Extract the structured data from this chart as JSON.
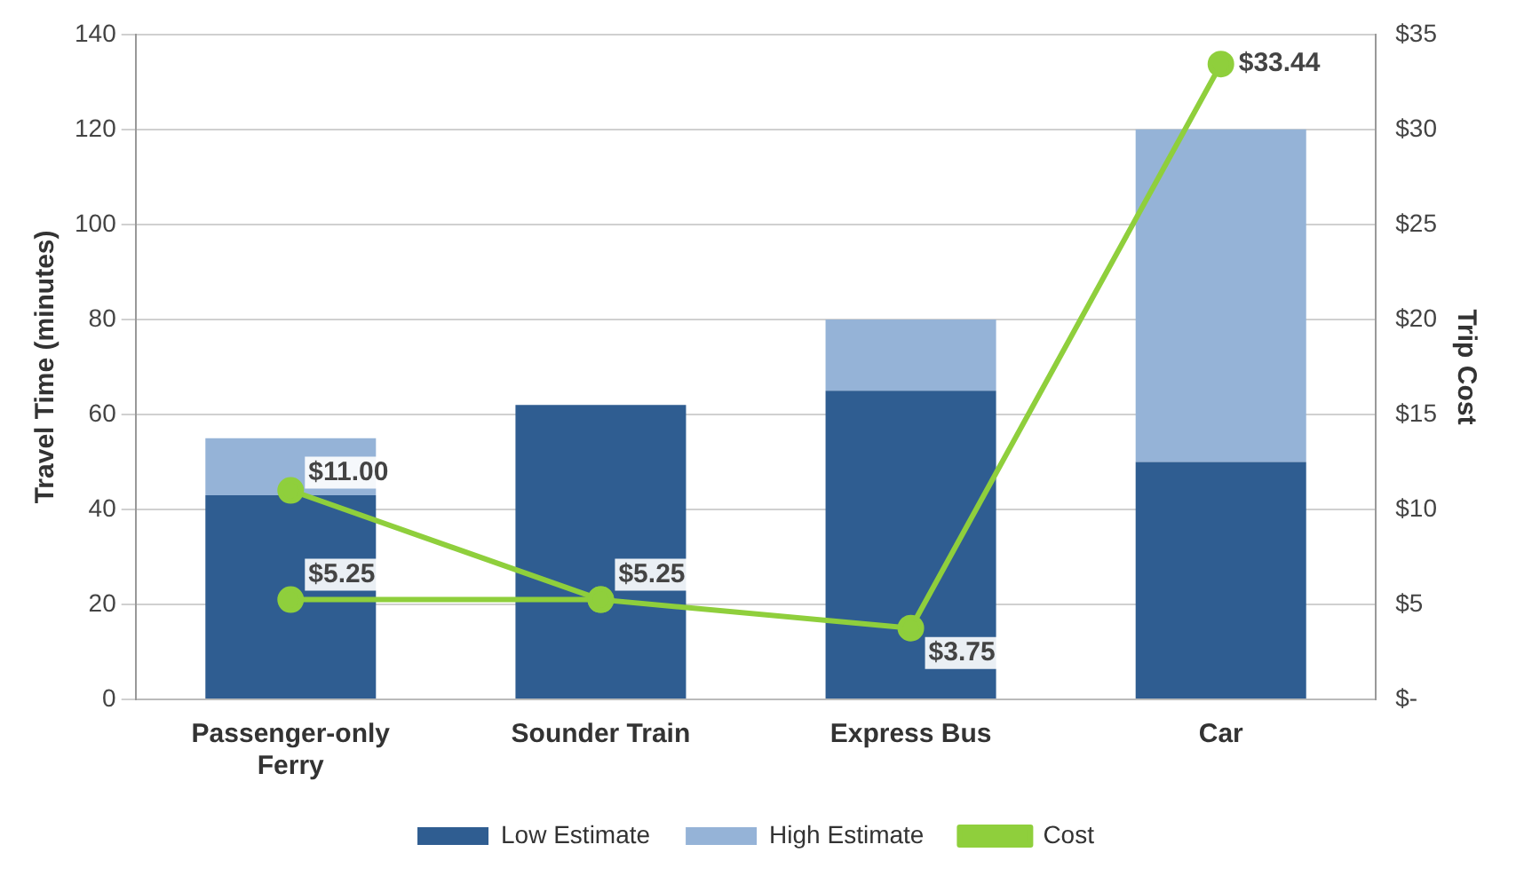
{
  "chart_data": {
    "type": "bar",
    "stacked": true,
    "categories": [
      "Passenger-only Ferry",
      "Sounder Train",
      "Express Bus",
      "Car"
    ],
    "ylabel": "Travel Time (minutes)",
    "y2label": "Trip Cost",
    "ylim": [
      0,
      140
    ],
    "yticks": [
      0,
      20,
      40,
      60,
      80,
      100,
      120,
      140
    ],
    "y2lim": [
      0,
      35
    ],
    "y2ticks": [
      {
        "value": 0,
        "label": "$-"
      },
      {
        "value": 5,
        "label": "$5"
      },
      {
        "value": 10,
        "label": "$10"
      },
      {
        "value": 15,
        "label": "$15"
      },
      {
        "value": 20,
        "label": "$20"
      },
      {
        "value": 25,
        "label": "$25"
      },
      {
        "value": 30,
        "label": "$30"
      },
      {
        "value": 35,
        "label": "$35"
      }
    ],
    "grid": "y",
    "legend": "bottom",
    "marker": "circle",
    "line_style": "solid",
    "series": [
      {
        "name": "Low Estimate",
        "color": "#2f5d91",
        "values": [
          43,
          62,
          65,
          50
        ]
      },
      {
        "name": "High Estimate",
        "color": "#95b3d7",
        "values": [
          12,
          null,
          15,
          70
        ]
      },
      {
        "name": "Cost",
        "type": "line",
        "axis": "y2",
        "color": "#8fcf3c",
        "x": [
          "Passenger-only Ferry",
          "Sounder Train",
          "Express Bus",
          "Car"
        ],
        "values": [
          11.0,
          5.25,
          3.75,
          33.44
        ],
        "value_labels": [
          "$11.00",
          null,
          "$3.75",
          "$33.44"
        ]
      },
      {
        "type": "line",
        "axis": "y2",
        "color": "#8fcf3c",
        "x": [
          "Passenger-only Ferry",
          "Sounder Train"
        ],
        "values": [
          5.25,
          5.25
        ],
        "value_labels": [
          "$5.25",
          "$5.25"
        ]
      }
    ]
  }
}
